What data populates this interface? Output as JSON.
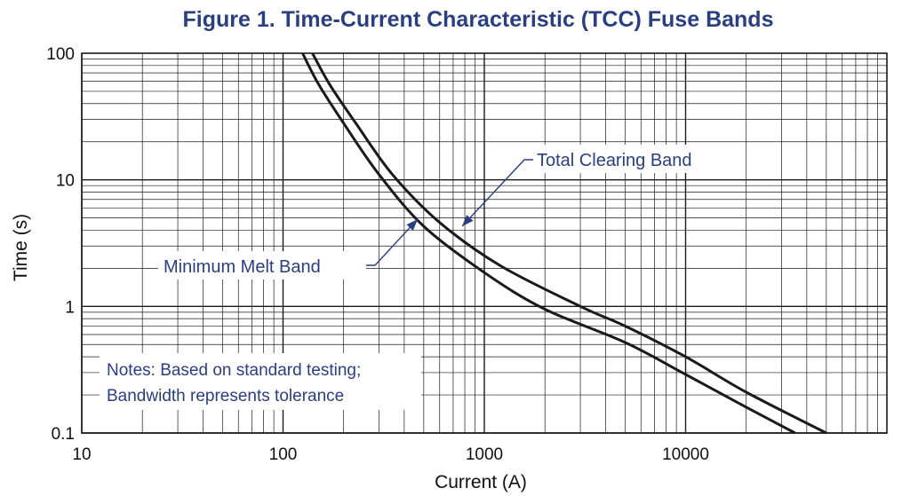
{
  "chart_data": {
    "type": "line",
    "title": "Figure 1. Time-Current Characteristic (TCC) Fuse Bands",
    "xlabel": "Current (A)",
    "ylabel": "Time (s)",
    "x_scale": "log",
    "y_scale": "log",
    "xlim": [
      10,
      100000
    ],
    "ylim": [
      0.1,
      100
    ],
    "x_ticks": [
      10,
      100,
      1000,
      10000
    ],
    "x_tick_labels": [
      "10",
      "100",
      "1000",
      "10000"
    ],
    "y_ticks": [
      0.1,
      1,
      10,
      100
    ],
    "y_tick_labels": [
      "0.1",
      "1",
      "10",
      "100"
    ],
    "grid": true,
    "series": [
      {
        "name": "Minimum Melt Band",
        "color": "#1a1a1a",
        "points": [
          [
            125,
            100
          ],
          [
            150,
            57
          ],
          [
            200,
            28
          ],
          [
            300,
            11
          ],
          [
            500,
            4.3
          ],
          [
            1000,
            1.85
          ],
          [
            2000,
            0.95
          ],
          [
            5000,
            0.52
          ],
          [
            10000,
            0.29
          ],
          [
            20000,
            0.16
          ],
          [
            35000,
            0.1
          ]
        ]
      },
      {
        "name": "Total Clearing Band",
        "color": "#1a1a1a",
        "points": [
          [
            140,
            100
          ],
          [
            170,
            57
          ],
          [
            230,
            28
          ],
          [
            350,
            11
          ],
          [
            600,
            4.6
          ],
          [
            1200,
            2.1
          ],
          [
            3000,
            1.0
          ],
          [
            5000,
            0.7
          ],
          [
            10000,
            0.4
          ],
          [
            20000,
            0.21
          ],
          [
            50000,
            0.1
          ]
        ]
      }
    ],
    "annotations": [
      {
        "text": "Total Clearing Band",
        "target_x": 800,
        "target_y": 4.8,
        "color": "#2a3f80"
      },
      {
        "text": "Minimum Melt Band",
        "target_x": 480,
        "target_y": 5.5,
        "color": "#2a3f80"
      }
    ],
    "notes": [
      "Notes: Based on standard testing;",
      "Bandwidth represents tolerance"
    ]
  }
}
